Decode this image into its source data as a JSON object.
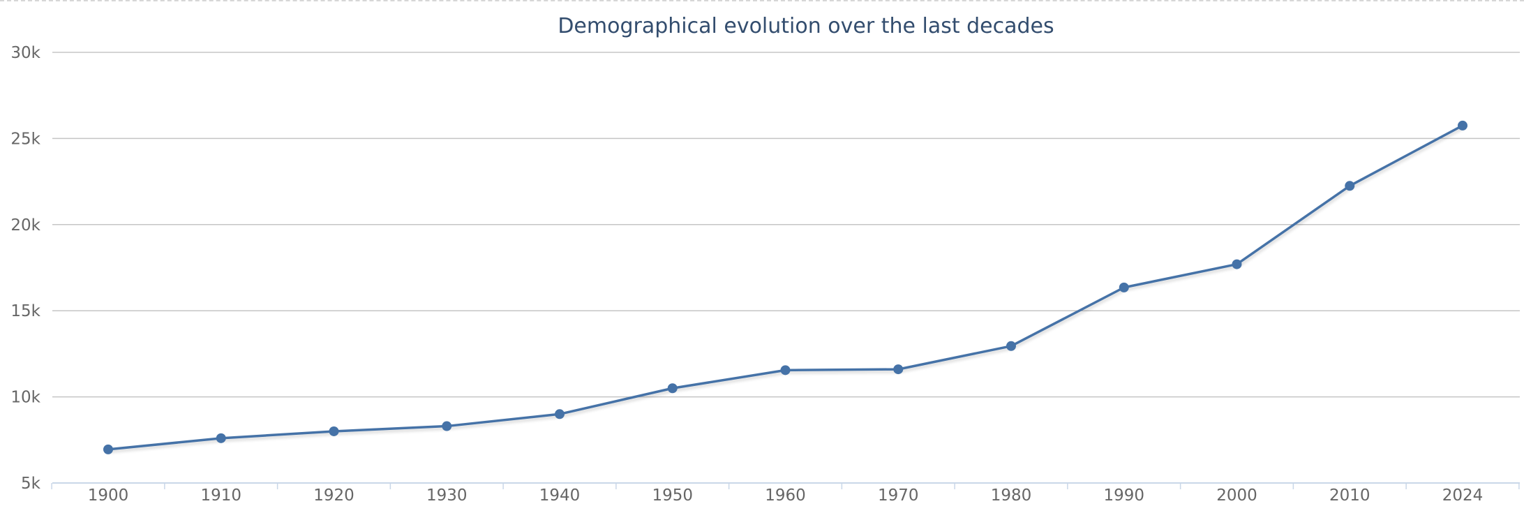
{
  "chart_data": {
    "type": "line",
    "title": "Demographical evolution over the last decades",
    "xlabel": "",
    "ylabel": "",
    "categories": [
      "1900",
      "1910",
      "1920",
      "1930",
      "1940",
      "1950",
      "1960",
      "1970",
      "1980",
      "1990",
      "2000",
      "2010",
      "2024"
    ],
    "series": [
      {
        "values": [
          6950,
          7600,
          8000,
          8300,
          9000,
          10500,
          11550,
          11600,
          12950,
          16350,
          17700,
          22250,
          25750
        ],
        "color": "#4572a7"
      }
    ],
    "ylim": [
      5000,
      30000
    ],
    "y_ticks": [
      5000,
      10000,
      15000,
      20000,
      25000,
      30000
    ],
    "y_tick_labels": [
      "5k",
      "10k",
      "15k",
      "20k",
      "25k",
      "30k"
    ],
    "grid": true,
    "legend": "none"
  }
}
